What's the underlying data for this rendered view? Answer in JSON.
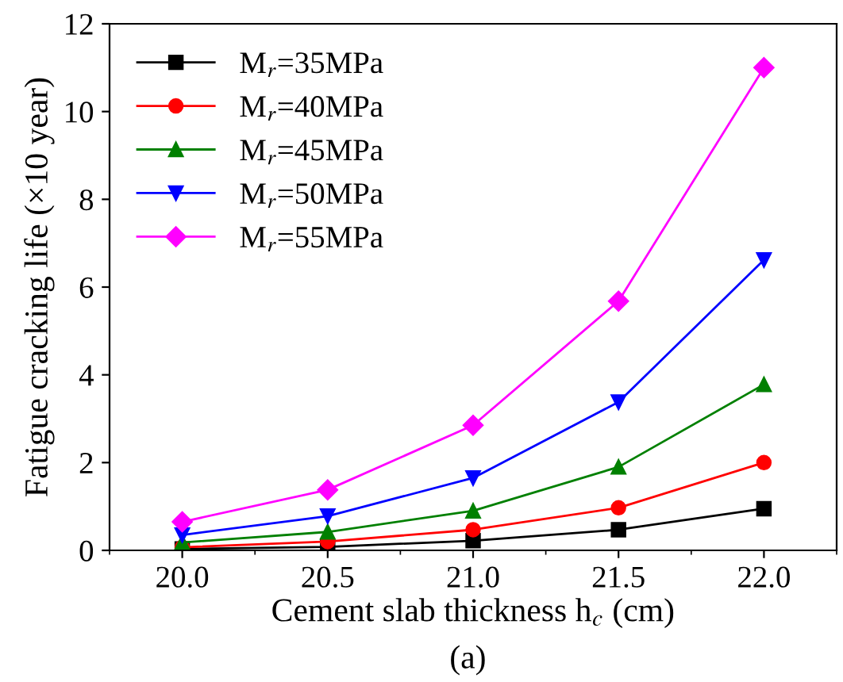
{
  "chart_data": {
    "type": "line",
    "xlabel": "Cement slab thickness h$_{c}$ (cm)",
    "ylabel": "Fatigue cracking life (×10 year)",
    "annotations": [
      "(a)"
    ],
    "x": [
      20.0,
      20.5,
      21.0,
      21.5,
      22.0
    ],
    "series": [
      {
        "name": "M$_{r}$=35MPa",
        "color": "#000000",
        "marker": "square",
        "values": [
          0.03,
          0.08,
          0.22,
          0.47,
          0.95
        ]
      },
      {
        "name": "M$_{r}$=40MPa",
        "color": "#ff0000",
        "marker": "circle",
        "values": [
          0.07,
          0.2,
          0.47,
          0.97,
          2.0
        ]
      },
      {
        "name": "M$_{r}$=45MPa",
        "color": "#008000",
        "marker": "triangle",
        "values": [
          0.18,
          0.42,
          0.9,
          1.9,
          3.78
        ]
      },
      {
        "name": "M$_{r}$=50MPa",
        "color": "#0000ff",
        "marker": "triangle_down",
        "values": [
          0.35,
          0.78,
          1.65,
          3.38,
          6.62
        ]
      },
      {
        "name": "M$_{r}$=55MPa",
        "color": "#ff00ff",
        "marker": "diamond",
        "values": [
          0.65,
          1.38,
          2.85,
          5.68,
          11.0
        ]
      }
    ],
    "xlim": [
      19.75,
      22.25
    ],
    "xticks": [
      {
        "value": 20.0,
        "label": "20.0"
      },
      {
        "value": 20.5,
        "label": "20.5"
      },
      {
        "value": 21.0,
        "label": "21.0"
      },
      {
        "value": 21.5,
        "label": "21.5"
      },
      {
        "value": 22.0,
        "label": "22.0"
      }
    ],
    "ylim": [
      0,
      12
    ],
    "yticks": [
      0,
      2,
      4,
      6,
      8,
      10,
      12
    ],
    "grid": false,
    "legend": "top left",
    "line_style": "solid"
  }
}
